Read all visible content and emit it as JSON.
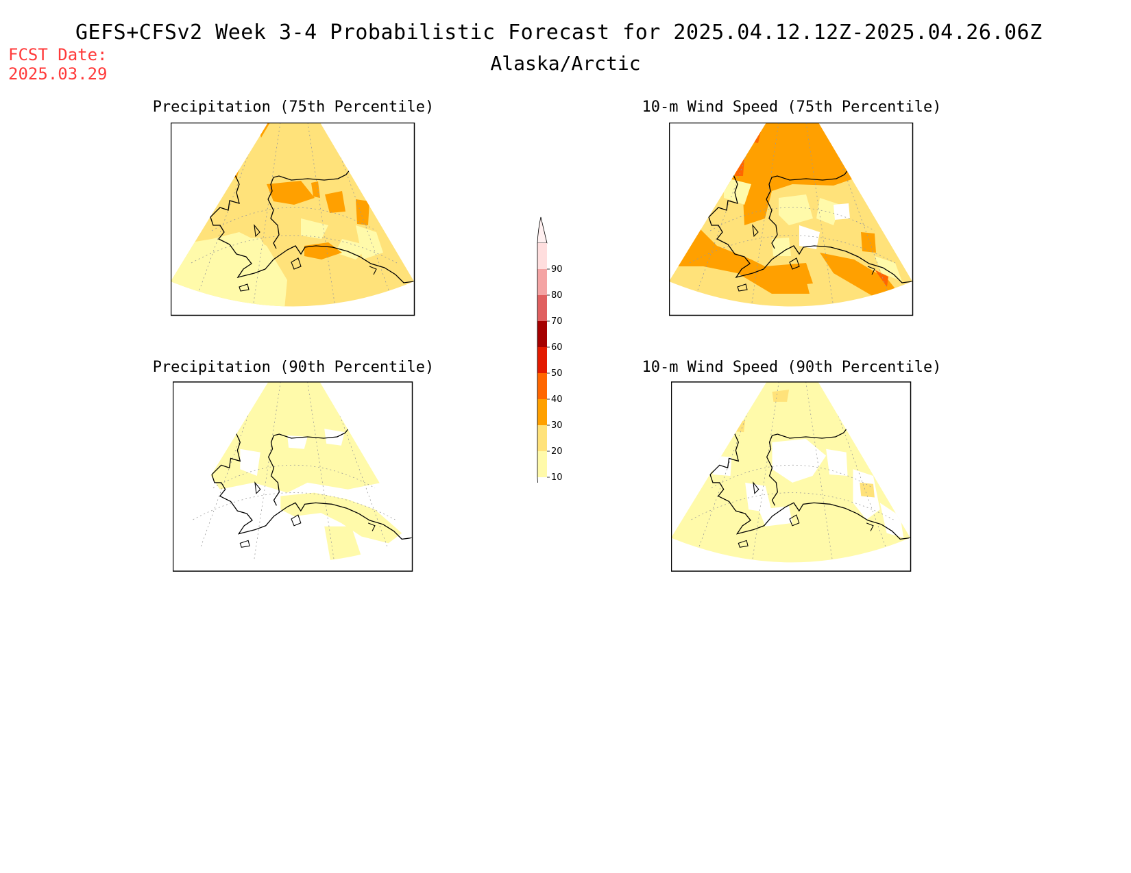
{
  "title": "GEFS+CFSv2 Week 3-4 Probabilistic Forecast for 2025.04.12.12Z-2025.04.26.06Z",
  "subtitle": "Alaska/Arctic",
  "fcst_label": "FCST Date:",
  "fcst_date": "2025.03.29",
  "panels": [
    {
      "id": "precip75",
      "title": "Precipitation (75th Percentile)"
    },
    {
      "id": "wind75",
      "title": "10-m Wind Speed (75th Percentile)"
    },
    {
      "id": "precip90",
      "title": "Precipitation (90th Percentile)"
    },
    {
      "id": "wind90",
      "title": "10-m Wind Speed (90th Percentile)"
    }
  ],
  "colorbar": {
    "levels": [
      "10",
      "20",
      "30",
      "40",
      "50",
      "60",
      "70",
      "80",
      "90"
    ],
    "colors": [
      "#fffaaa",
      "#ffe27a",
      "#ffa000",
      "#ff6600",
      "#e31a00",
      "#a50000",
      "#e06060",
      "#f4a4a4",
      "#ffdede"
    ]
  },
  "map_colors": {
    "c10": "#fffaaa",
    "c20": "#ffe27a",
    "c30": "#ffa000",
    "c40": "#ff6600",
    "background": "#ffffff",
    "coast": "#000000"
  }
}
